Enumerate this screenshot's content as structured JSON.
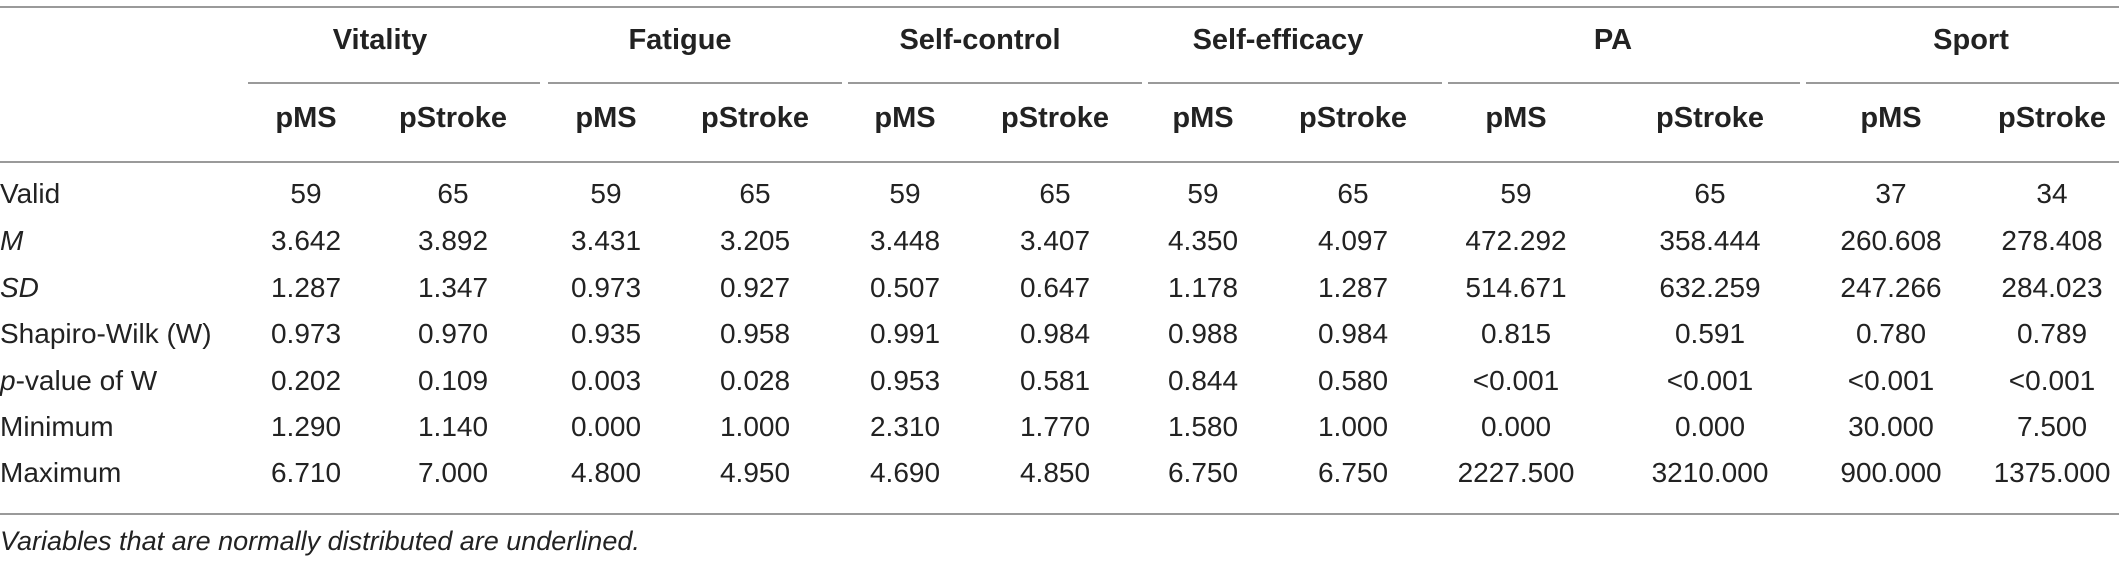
{
  "table": {
    "groups": [
      "Vitality",
      "Fatigue",
      "Self-control",
      "Self-efficacy",
      "PA",
      "Sport"
    ],
    "subheaders": [
      "pMS",
      "pStroke",
      "pMS",
      "pStroke",
      "pMS",
      "pStroke",
      "pMS",
      "pStroke",
      "pMS",
      "pStroke",
      "pMS",
      "pStroke"
    ],
    "rows": [
      {
        "label": "Valid",
        "label_prefix_italic": "",
        "italic": false,
        "values": [
          "59",
          "65",
          "59",
          "65",
          "59",
          "65",
          "59",
          "65",
          "59",
          "65",
          "37",
          "34"
        ]
      },
      {
        "label": "M",
        "label_prefix_italic": "",
        "italic": true,
        "values": [
          "3.642",
          "3.892",
          "3.431",
          "3.205",
          "3.448",
          "3.407",
          "4.350",
          "4.097",
          "472.292",
          "358.444",
          "260.608",
          "278.408"
        ]
      },
      {
        "label": "SD",
        "label_prefix_italic": "",
        "italic": true,
        "values": [
          "1.287",
          "1.347",
          "0.973",
          "0.927",
          "0.507",
          "0.647",
          "1.178",
          "1.287",
          "514.671",
          "632.259",
          "247.266",
          "284.023"
        ]
      },
      {
        "label": "Shapiro-Wilk (W)",
        "label_prefix_italic": "",
        "italic": false,
        "values": [
          "0.973",
          "0.970",
          "0.935",
          "0.958",
          "0.991",
          "0.984",
          "0.988",
          "0.984",
          "0.815",
          "0.591",
          "0.780",
          "0.789"
        ]
      },
      {
        "label": "-value of W",
        "label_prefix_italic": "p",
        "italic": false,
        "values": [
          "0.202",
          "0.109",
          "0.003",
          "0.028",
          "0.953",
          "0.581",
          "0.844",
          "0.580",
          "<0.001",
          "<0.001",
          "<0.001",
          "<0.001"
        ]
      },
      {
        "label": "Minimum",
        "label_prefix_italic": "",
        "italic": false,
        "values": [
          "1.290",
          "1.140",
          "0.000",
          "1.000",
          "2.310",
          "1.770",
          "1.580",
          "1.000",
          "0.000",
          "0.000",
          "30.000",
          "7.500"
        ]
      },
      {
        "label": "Maximum",
        "label_prefix_italic": "",
        "italic": false,
        "values": [
          "6.710",
          "7.000",
          "4.800",
          "4.950",
          "4.690",
          "4.850",
          "6.750",
          "6.750",
          "2227.500",
          "3210.000",
          "900.000",
          "1375.000"
        ]
      }
    ],
    "footnote": "Variables that are normally distributed are underlined."
  }
}
